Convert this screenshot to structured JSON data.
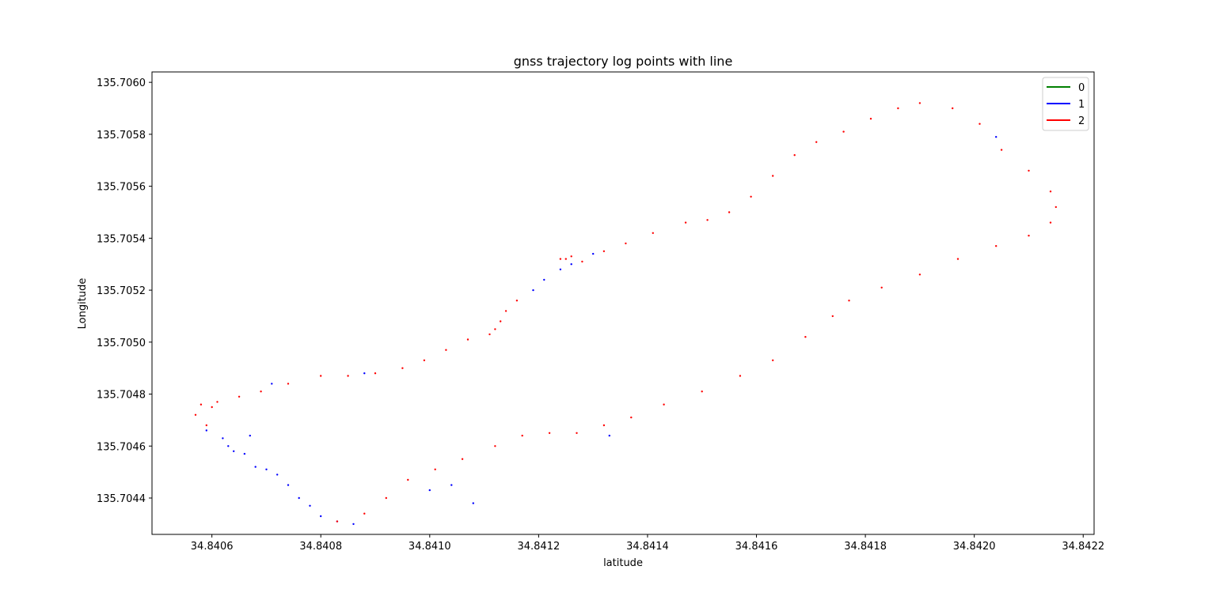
{
  "chart_data": {
    "type": "scatter",
    "title": "gnss trajectory log points with line",
    "xlabel": "latitude",
    "ylabel": "Longitude",
    "xlim": [
      34.84049,
      34.84222
    ],
    "ylim": [
      135.70426,
      135.70604
    ],
    "xticks": [
      34.8406,
      34.8408,
      34.841,
      34.8412,
      34.8414,
      34.8416,
      34.8418,
      34.842,
      34.8422
    ],
    "xtick_labels": [
      "34.8406",
      "34.8408",
      "34.8410",
      "34.8412",
      "34.8414",
      "34.8416",
      "34.8418",
      "34.8420",
      "34.8422"
    ],
    "yticks": [
      135.7044,
      135.7046,
      135.7048,
      135.705,
      135.7052,
      135.7054,
      135.7056,
      135.7058,
      135.706
    ],
    "ytick_labels": [
      "135.7044",
      "135.7046",
      "135.7048",
      "135.7050",
      "135.7052",
      "135.7054",
      "135.7056",
      "135.7058",
      "135.7060"
    ],
    "grid": false,
    "legend_position": "top-right",
    "series": [
      {
        "name": "0",
        "color": "#008000",
        "points": []
      },
      {
        "name": "1",
        "color": "#0000ff",
        "points": [
          [
            34.84067,
            135.70464
          ],
          [
            34.84063,
            135.7046
          ],
          [
            34.84059,
            135.70466
          ],
          [
            34.84062,
            135.70463
          ],
          [
            34.84064,
            135.70458
          ],
          [
            34.84066,
            135.70457
          ],
          [
            34.84068,
            135.70452
          ],
          [
            34.8407,
            135.70451
          ],
          [
            34.84072,
            135.70449
          ],
          [
            34.84074,
            135.70445
          ],
          [
            34.84076,
            135.7044
          ],
          [
            34.84078,
            135.70437
          ],
          [
            34.8408,
            135.70433
          ],
          [
            34.84083,
            135.70431
          ],
          [
            34.84086,
            135.7043
          ],
          [
            34.84108,
            135.70438
          ],
          [
            34.841,
            135.70443
          ],
          [
            34.84119,
            135.7052
          ],
          [
            34.84121,
            135.70524
          ],
          [
            34.84124,
            135.70528
          ],
          [
            34.84126,
            135.7053
          ],
          [
            34.8413,
            135.70534
          ],
          [
            34.84071,
            135.70484
          ],
          [
            34.84088,
            135.70488
          ],
          [
            34.84133,
            135.70464
          ],
          [
            34.84204,
            135.70579
          ],
          [
            34.84104,
            135.70445
          ]
        ]
      },
      {
        "name": "2",
        "color": "#ff0000",
        "points": [
          [
            34.84057,
            135.70472
          ],
          [
            34.84058,
            135.70476
          ],
          [
            34.84061,
            135.70477
          ],
          [
            34.84065,
            135.70479
          ],
          [
            34.84069,
            135.70481
          ],
          [
            34.84074,
            135.70484
          ],
          [
            34.8408,
            135.70487
          ],
          [
            34.84085,
            135.70487
          ],
          [
            34.8409,
            135.70488
          ],
          [
            34.84095,
            135.7049
          ],
          [
            34.84099,
            135.70493
          ],
          [
            34.84103,
            135.70497
          ],
          [
            34.84107,
            135.70501
          ],
          [
            34.84111,
            135.70503
          ],
          [
            34.84112,
            135.70505
          ],
          [
            34.84113,
            135.70508
          ],
          [
            34.84114,
            135.70512
          ],
          [
            34.84116,
            135.70516
          ],
          [
            34.84124,
            135.70532
          ],
          [
            34.84128,
            135.70531
          ],
          [
            34.84132,
            135.70535
          ],
          [
            34.84136,
            135.70538
          ],
          [
            34.84141,
            135.70542
          ],
          [
            34.84147,
            135.70546
          ],
          [
            34.84151,
            135.70547
          ],
          [
            34.84155,
            135.7055
          ],
          [
            34.84159,
            135.70556
          ],
          [
            34.84163,
            135.70564
          ],
          [
            34.84167,
            135.70572
          ],
          [
            34.84171,
            135.70577
          ],
          [
            34.84176,
            135.70581
          ],
          [
            34.84181,
            135.70586
          ],
          [
            34.84186,
            135.7059
          ],
          [
            34.8419,
            135.70592
          ],
          [
            34.84196,
            135.7059
          ],
          [
            34.84201,
            135.70584
          ],
          [
            34.84205,
            135.70574
          ],
          [
            34.8421,
            135.70566
          ],
          [
            34.84214,
            135.70558
          ],
          [
            34.84215,
            135.70552
          ],
          [
            34.84214,
            135.70546
          ],
          [
            34.8421,
            135.70541
          ],
          [
            34.84204,
            135.70537
          ],
          [
            34.84197,
            135.70532
          ],
          [
            34.8419,
            135.70526
          ],
          [
            34.84183,
            135.70521
          ],
          [
            34.84177,
            135.70516
          ],
          [
            34.84174,
            135.7051
          ],
          [
            34.84169,
            135.70502
          ],
          [
            34.84163,
            135.70493
          ],
          [
            34.84157,
            135.70487
          ],
          [
            34.8415,
            135.70481
          ],
          [
            34.84143,
            135.70476
          ],
          [
            34.84137,
            135.70471
          ],
          [
            34.84132,
            135.70468
          ],
          [
            34.84127,
            135.70465
          ],
          [
            34.84122,
            135.70465
          ],
          [
            34.84117,
            135.70464
          ],
          [
            34.84112,
            135.7046
          ],
          [
            34.84106,
            135.70455
          ],
          [
            34.84101,
            135.70451
          ],
          [
            34.84096,
            135.70447
          ],
          [
            34.84092,
            135.7044
          ],
          [
            34.84088,
            135.70434
          ],
          [
            34.84083,
            135.70431
          ],
          [
            34.8406,
            135.70475
          ],
          [
            34.84059,
            135.70468
          ],
          [
            34.84125,
            135.70532
          ],
          [
            34.84126,
            135.70533
          ]
        ]
      }
    ]
  }
}
